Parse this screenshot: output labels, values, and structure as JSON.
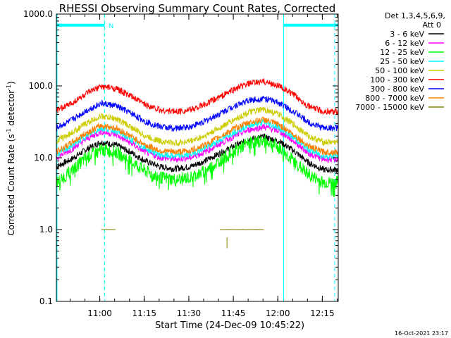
{
  "chart_data": {
    "type": "line",
    "title": "RHESSI Observing Summary Count Rates, Corrected",
    "xlabel": "Start Time (24-Dec-09 10:45:22)",
    "ylabel_main": "Corrected Count Rate (s",
    "ylabel_sup1": "-1",
    "ylabel_mid": " detector",
    "ylabel_sup2": "-1",
    "ylabel_end": ")",
    "yscale": "log",
    "ylim": [
      0.1,
      1000
    ],
    "xlim_minutes": [
      0,
      95
    ],
    "x_ticks": [
      {
        "label": "11:00",
        "minutes": 14.63
      },
      {
        "label": "11:15",
        "minutes": 29.63
      },
      {
        "label": "11:30",
        "minutes": 44.63
      },
      {
        "label": "11:45",
        "minutes": 59.63
      },
      {
        "label": "12:00",
        "minutes": 74.63
      },
      {
        "label": "12:15",
        "minutes": 89.63
      }
    ],
    "y_ticks": [
      {
        "label": "0.1",
        "value": 0.1
      },
      {
        "label": "1.0",
        "value": 1.0
      },
      {
        "label": "10.0",
        "value": 10.0
      },
      {
        "label": "100.0",
        "value": 100.0
      },
      {
        "label": "1000.0",
        "value": 1000.0
      }
    ],
    "legend_header": [
      "Det 1,3,4,5,6,9,",
      "Att 0"
    ],
    "legend_position": "outside-right",
    "night_segments_minutes": [
      [
        0,
        16.3
      ],
      [
        76.6,
        95
      ]
    ],
    "night_level": 700,
    "saa_label": "N",
    "saa_label_minutes": 18.5,
    "solid_markers_minutes": [
      0,
      76.6
    ],
    "dashed_markers_minutes": [
      16.3,
      93.8
    ],
    "x_sample_minutes": [
      0,
      5,
      10,
      15,
      20,
      25,
      30,
      35,
      40,
      45,
      50,
      55,
      60,
      65,
      70,
      75,
      80,
      85,
      90,
      95
    ],
    "series": [
      {
        "name": "3 - 6 keV",
        "color": "#000000",
        "values": [
          7.5,
          9.5,
          13,
          16.5,
          15,
          12,
          9,
          7.5,
          7,
          7.5,
          9,
          11.5,
          14.5,
          18,
          19.5,
          17,
          12.5,
          8.5,
          6.8,
          6.8
        ]
      },
      {
        "name": "6 - 12 keV",
        "color": "#ff00ff",
        "values": [
          10,
          13,
          18,
          23,
          21,
          16,
          12,
          10,
          9.5,
          10,
          12,
          15.5,
          20,
          24.5,
          27,
          23.5,
          17,
          11.5,
          9.5,
          9.5
        ]
      },
      {
        "name": "12 - 25 keV",
        "color": "#00ff00",
        "values": [
          4.5,
          6.5,
          10,
          13,
          12,
          9,
          6.5,
          5.3,
          5,
          5.3,
          6.5,
          9,
          12.5,
          16,
          17.5,
          14,
          9,
          5.8,
          4.5,
          4.5
        ]
      },
      {
        "name": "25 - 50 keV",
        "color": "#00ffff",
        "values": [
          11,
          14.5,
          20,
          26,
          24,
          18,
          13.5,
          11,
          10.5,
          11,
          13.5,
          17.5,
          23,
          28.5,
          31,
          26.5,
          19,
          13,
          10.5,
          10.5
        ]
      },
      {
        "name": "50 - 100 keV",
        "color": "#cccc00",
        "values": [
          17,
          22,
          30,
          38,
          35,
          27,
          20,
          17,
          16,
          17,
          20,
          26,
          34,
          43,
          47,
          40,
          29,
          20,
          16.5,
          16.5
        ]
      },
      {
        "name": "100 - 300 keV",
        "color": "#ff0000",
        "values": [
          45,
          57,
          77,
          98,
          92,
          72,
          55,
          46,
          44,
          46,
          55,
          70,
          90,
          108,
          115,
          100,
          75,
          52,
          44,
          44
        ]
      },
      {
        "name": "300 - 800 keV",
        "color": "#0000ff",
        "values": [
          26,
          33,
          45,
          57,
          53,
          42,
          32,
          27,
          25.5,
          27,
          32,
          41,
          53,
          63,
          67,
          58,
          44,
          31,
          26,
          26
        ]
      },
      {
        "name": "800 - 7000 keV",
        "color": "#ff8000",
        "values": [
          12,
          16,
          22,
          28,
          26,
          20,
          15,
          12.5,
          12,
          12.5,
          15,
          19.5,
          25.5,
          31,
          34,
          29,
          21,
          14.5,
          12,
          12
        ]
      },
      {
        "name": "7000 - 15000 keV",
        "color": "#808000",
        "values": [
          null,
          null,
          null,
          1.0,
          1.0,
          null,
          null,
          null,
          null,
          null,
          null,
          1.0,
          1.0,
          1.0,
          1.0,
          null,
          null,
          null,
          null,
          null
        ]
      }
    ]
  },
  "footer": {
    "timestamp": "16-Oct-2021 23:17"
  }
}
